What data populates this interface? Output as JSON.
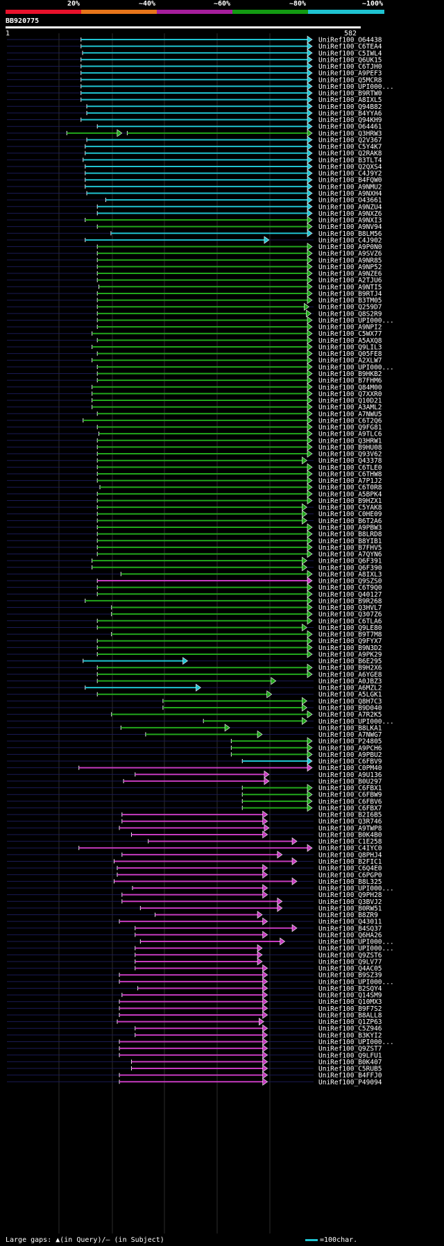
{
  "query": {
    "name": "BB920775",
    "start": "1",
    "end": "582"
  },
  "legend": {
    "labels": [
      "20%",
      "~40%",
      "~60%",
      "~80%",
      "~100%"
    ],
    "colors": [
      "#e8112b",
      "#e7751a",
      "#a61e9c",
      "#139a12",
      "#1fc3d1"
    ]
  },
  "footer": "Large gaps: ▲(in Query)/– (in Subject)",
  "scale_label": "=100char.",
  "colors": {
    "cyan": "#1fc3d1",
    "green": "#22a81c",
    "magenta": "#c63bc0"
  },
  "hits": [
    {
      "id": "UniRef100_O64438",
      "c": "c",
      "s": 142,
      "e": 582
    },
    {
      "id": "UniRef100_C6TEA4",
      "c": "c",
      "s": 142,
      "e": 582
    },
    {
      "id": "UniRef100_C5IWL4",
      "c": "c",
      "s": 145,
      "e": 582
    },
    {
      "id": "UniRef100_Q6UK15",
      "c": "c",
      "s": 142,
      "e": 582
    },
    {
      "id": "UniRef100_C6TJH0",
      "c": "c",
      "s": 142,
      "e": 582
    },
    {
      "id": "UniRef100_A9PEF3",
      "c": "c",
      "s": 142,
      "e": 582
    },
    {
      "id": "UniRef100_Q5MCR8",
      "c": "c",
      "s": 142,
      "e": 582
    },
    {
      "id": "UniRef100_UPI000...",
      "c": "c",
      "s": 142,
      "e": 582
    },
    {
      "id": "UniRef100_B9RTW0",
      "c": "c",
      "s": 142,
      "e": 582
    },
    {
      "id": "UniRef100_A8IXL5",
      "c": "c",
      "s": 142,
      "e": 582
    },
    {
      "id": "UniRef100_Q94B82",
      "c": "c",
      "s": 153,
      "e": 582
    },
    {
      "id": "UniRef100_B4YYA6",
      "c": "c",
      "s": 153,
      "e": 582
    },
    {
      "id": "UniRef100_Q94KH9",
      "c": "c",
      "s": 142,
      "e": 582
    },
    {
      "id": "UniRef100_O64461",
      "c": "c",
      "s": 173,
      "e": 582
    },
    {
      "id": "UniRef100_Q3HRW3",
      "c": "g",
      "s": 115,
      "e": 220,
      "s2": 230,
      "e2": 582
    },
    {
      "id": "UniRef100_Q2V367",
      "c": "c",
      "s": 153,
      "e": 582
    },
    {
      "id": "UniRef100_C5Y4K7",
      "c": "c",
      "s": 150,
      "e": 582
    },
    {
      "id": "UniRef100_Q2RAK8",
      "c": "c",
      "s": 150,
      "e": 582
    },
    {
      "id": "UniRef100_B3TLT4",
      "c": "c",
      "s": 146,
      "e": 582
    },
    {
      "id": "UniRef100_Q2QXS4",
      "c": "c",
      "s": 150,
      "e": 582
    },
    {
      "id": "UniRef100_C4J9Y2",
      "c": "c",
      "s": 150,
      "e": 582
    },
    {
      "id": "UniRef100_B4FQW0",
      "c": "c",
      "s": 150,
      "e": 582
    },
    {
      "id": "UniRef100_A9NMU2",
      "c": "c",
      "s": 150,
      "e": 582
    },
    {
      "id": "UniRef100_A9NXH4",
      "c": "c",
      "s": 153,
      "e": 582
    },
    {
      "id": "UniRef100_O43661",
      "c": "c",
      "s": 189,
      "e": 582
    },
    {
      "id": "UniRef100_A9NZU4",
      "c": "c",
      "s": 173,
      "e": 582
    },
    {
      "id": "UniRef100_A9NXZ6",
      "c": "c",
      "s": 173,
      "e": 582
    },
    {
      "id": "UniRef100_A9NXI3",
      "c": "g",
      "s": 150,
      "e": 582
    },
    {
      "id": "UniRef100_A9NV94",
      "c": "g",
      "s": 173,
      "e": 582
    },
    {
      "id": "UniRef100_B8LM56",
      "c": "c",
      "s": 199,
      "e": 582
    },
    {
      "id": "UniRef100_C4J902",
      "c": "c",
      "s": 150,
      "e": 500
    },
    {
      "id": "UniRef100_A9P0N0",
      "c": "g",
      "s": 173,
      "e": 582
    },
    {
      "id": "UniRef100_A9SVZ6",
      "c": "g",
      "s": 173,
      "e": 582
    },
    {
      "id": "UniRef100_A9NR85",
      "c": "g",
      "s": 173,
      "e": 582
    },
    {
      "id": "UniRef100_A9NP52",
      "c": "g",
      "s": 173,
      "e": 582
    },
    {
      "id": "UniRef100_A9NZE6",
      "c": "g",
      "s": 173,
      "e": 582
    },
    {
      "id": "UniRef100_A2TJU6",
      "c": "g",
      "s": 173,
      "e": 582
    },
    {
      "id": "UniRef100_A9NTI5",
      "c": "g",
      "s": 176,
      "e": 582
    },
    {
      "id": "UniRef100_B9RTJ4",
      "c": "g",
      "s": 173,
      "e": 582
    },
    {
      "id": "UniRef100_B3TM05",
      "c": "g",
      "s": 173,
      "e": 582
    },
    {
      "id": "UniRef100_Q259D7",
      "c": "g",
      "s": 173,
      "e": 576
    },
    {
      "id": "UniRef100_Q8S2R9",
      "c": "g",
      "s": 173,
      "e": 580
    },
    {
      "id": "UniRef100_UPI000...",
      "c": "g",
      "s": 173,
      "e": 582
    },
    {
      "id": "UniRef100_A9NPI2",
      "c": "g",
      "s": 173,
      "e": 582
    },
    {
      "id": "UniRef100_C5WX77",
      "c": "g",
      "s": 163,
      "e": 582
    },
    {
      "id": "UniRef100_A5AXQ8",
      "c": "g",
      "s": 173,
      "e": 582
    },
    {
      "id": "UniRef100_Q9LIL3",
      "c": "g",
      "s": 163,
      "e": 582
    },
    {
      "id": "UniRef100_Q05FE8",
      "c": "g",
      "s": 173,
      "e": 582
    },
    {
      "id": "UniRef100_A2XLW7",
      "c": "g",
      "s": 163,
      "e": 582
    },
    {
      "id": "UniRef100_UPI000...",
      "c": "g",
      "s": 173,
      "e": 582
    },
    {
      "id": "UniRef100_B9HKB2",
      "c": "g",
      "s": 173,
      "e": 582
    },
    {
      "id": "UniRef100_B7FHM6",
      "c": "g",
      "s": 173,
      "e": 582
    },
    {
      "id": "UniRef100_Q84M00",
      "c": "g",
      "s": 163,
      "e": 582
    },
    {
      "id": "UniRef100_Q7XXR0",
      "c": "g",
      "s": 163,
      "e": 582
    },
    {
      "id": "UniRef100_Q10D21",
      "c": "g",
      "s": 163,
      "e": 582
    },
    {
      "id": "UniRef100_A3AML2",
      "c": "g",
      "s": 163,
      "e": 582
    },
    {
      "id": "UniRef100_A7NWU5",
      "c": "g",
      "s": 173,
      "e": 582
    },
    {
      "id": "UniRef100_C6T2Q6",
      "c": "g",
      "s": 146,
      "e": 582
    },
    {
      "id": "UniRef100_Q9FG81",
      "c": "g",
      "s": 173,
      "e": 582
    },
    {
      "id": "UniRef100_A9TLC6",
      "c": "g",
      "s": 176,
      "e": 582
    },
    {
      "id": "UniRef100_Q3HRW1",
      "c": "g",
      "s": 173,
      "e": 582
    },
    {
      "id": "UniRef100_B9HU08",
      "c": "g",
      "s": 173,
      "e": 582
    },
    {
      "id": "UniRef100_Q93V62",
      "c": "g",
      "s": 173,
      "e": 582
    },
    {
      "id": "UniRef100_Q43378",
      "c": "g",
      "s": 173,
      "e": 572
    },
    {
      "id": "UniRef100_C6TLE0",
      "c": "g",
      "s": 173,
      "e": 582
    },
    {
      "id": "UniRef100_C6THW8",
      "c": "g",
      "s": 173,
      "e": 582
    },
    {
      "id": "UniRef100_A7P1J2",
      "c": "g",
      "s": 173,
      "e": 582
    },
    {
      "id": "UniRef100_C6T0R8",
      "c": "g",
      "s": 178,
      "e": 582
    },
    {
      "id": "UniRef100_A5BPK4",
      "c": "g",
      "s": 173,
      "e": 582
    },
    {
      "id": "UniRef100_B9HZX1",
      "c": "g",
      "s": 173,
      "e": 582
    },
    {
      "id": "UniRef100_C5YAK8",
      "c": "g",
      "s": 173,
      "e": 572
    },
    {
      "id": "UniRef100_C0HE09",
      "c": "g",
      "s": 173,
      "e": 572
    },
    {
      "id": "UniRef100_B6T2A6",
      "c": "g",
      "s": 173,
      "e": 572
    },
    {
      "id": "UniRef100_A9PBW3",
      "c": "g",
      "s": 173,
      "e": 582
    },
    {
      "id": "UniRef100_B8LRD8",
      "c": "g",
      "s": 173,
      "e": 582
    },
    {
      "id": "UniRef100_B8YIB1",
      "c": "g",
      "s": 173,
      "e": 582
    },
    {
      "id": "UniRef100_B7FHV5",
      "c": "g",
      "s": 173,
      "e": 582
    },
    {
      "id": "UniRef100_A7QYN6",
      "c": "g",
      "s": 173,
      "e": 582
    },
    {
      "id": "UniRef100_Q6F391",
      "c": "g",
      "s": 163,
      "e": 572
    },
    {
      "id": "UniRef100_Q6F390",
      "c": "g",
      "s": 163,
      "e": 572
    },
    {
      "id": "UniRef100_A8IXL3",
      "c": "g",
      "s": 218,
      "e": 582
    },
    {
      "id": "UniRef100_Q9SZS0",
      "c": "m",
      "s": 173,
      "e": 582
    },
    {
      "id": "UniRef100_C6T9Q0",
      "c": "g",
      "s": 173,
      "e": 582
    },
    {
      "id": "UniRef100_Q40127",
      "c": "g",
      "s": 173,
      "e": 582
    },
    {
      "id": "UniRef100_B9R268",
      "c": "g",
      "s": 150,
      "e": 582
    },
    {
      "id": "UniRef100_Q3HVL7",
      "c": "g",
      "s": 200,
      "e": 582
    },
    {
      "id": "UniRef100_Q307Z6",
      "c": "g",
      "s": 200,
      "e": 582
    },
    {
      "id": "UniRef100_C6TLA6",
      "c": "g",
      "s": 173,
      "e": 582
    },
    {
      "id": "UniRef100_Q9LE80",
      "c": "g",
      "s": 173,
      "e": 572
    },
    {
      "id": "UniRef100_B9T7M8",
      "c": "g",
      "s": 200,
      "e": 582
    },
    {
      "id": "UniRef100_Q9FYX7",
      "c": "g",
      "s": 173,
      "e": 582
    },
    {
      "id": "UniRef100_B9N3D2",
      "c": "g",
      "s": 173,
      "e": 582
    },
    {
      "id": "UniRef100_A9PK29",
      "c": "g",
      "s": 173,
      "e": 582
    },
    {
      "id": "UniRef100_B6E295",
      "c": "c",
      "s": 146,
      "e": 345
    },
    {
      "id": "UniRef100_B9H2X6",
      "c": "g",
      "s": 173,
      "e": 582
    },
    {
      "id": "UniRef100_A6YGE8",
      "c": "g",
      "s": 173,
      "e": 582
    },
    {
      "id": "UniRef100_A0JBZ3",
      "c": "g",
      "s": 173,
      "e": 513
    },
    {
      "id": "UniRef100_A6MZL2",
      "c": "c",
      "s": 150,
      "e": 370
    },
    {
      "id": "UniRef100_A5LGK1",
      "c": "g",
      "s": 173,
      "e": 505
    },
    {
      "id": "UniRef100_Q8H7C3",
      "c": "g",
      "s": 298,
      "e": 572
    },
    {
      "id": "UniRef100_B9D040",
      "c": "g",
      "s": 298,
      "e": 572
    },
    {
      "id": "UniRef100_A7R2K5",
      "c": "g",
      "s": 200,
      "e": 582
    },
    {
      "id": "UniRef100_UPI000...",
      "c": "g",
      "s": 375,
      "e": 572
    },
    {
      "id": "UniRef100_B8LKA1",
      "c": "g",
      "s": 218,
      "e": 425
    },
    {
      "id": "UniRef100_A7NWG7",
      "c": "g",
      "s": 265,
      "e": 487
    },
    {
      "id": "UniRef100_P24805",
      "c": "g",
      "s": 428,
      "e": 582
    },
    {
      "id": "UniRef100_A9PCH6",
      "c": "g",
      "s": 428,
      "e": 582
    },
    {
      "id": "UniRef100_A9PBU2",
      "c": "g",
      "s": 428,
      "e": 582
    },
    {
      "id": "UniRef100_C6FBV9",
      "c": "c",
      "s": 449,
      "e": 582
    },
    {
      "id": "UniRef100_C0PM40",
      "c": "m",
      "s": 138,
      "e": 582
    },
    {
      "id": "UniRef100_A9U136",
      "c": "m",
      "s": 245,
      "e": 500
    },
    {
      "id": "UniRef100_B0U297",
      "c": "m",
      "s": 223,
      "e": 500
    },
    {
      "id": "UniRef100_C6FBX1",
      "c": "g",
      "s": 449,
      "e": 582
    },
    {
      "id": "UniRef100_C6FBW9",
      "c": "g",
      "s": 449,
      "e": 582
    },
    {
      "id": "UniRef100_C6FBV6",
      "c": "g",
      "s": 449,
      "e": 582
    },
    {
      "id": "UniRef100_C6FBX7",
      "c": "g",
      "s": 449,
      "e": 582
    },
    {
      "id": "UniRef100_B2I6B5",
      "c": "m",
      "s": 220,
      "e": 497
    },
    {
      "id": "UniRef100_Q3R746",
      "c": "m",
      "s": 220,
      "e": 497
    },
    {
      "id": "UniRef100_A9TWP8",
      "c": "m",
      "s": 215,
      "e": 500
    },
    {
      "id": "UniRef100_B0K4B0",
      "c": "m",
      "s": 238,
      "e": 497
    },
    {
      "id": "UniRef100_C1E258",
      "c": "m",
      "s": 270,
      "e": 553
    },
    {
      "id": "UniRef100_C4IYC0",
      "c": "m",
      "s": 138,
      "e": 582
    },
    {
      "id": "UniRef100_Q8PHJ4",
      "c": "m",
      "s": 220,
      "e": 525
    },
    {
      "id": "UniRef100_B2FIC1",
      "c": "m",
      "s": 205,
      "e": 553
    },
    {
      "id": "UniRef100_C6Q4E0",
      "c": "m",
      "s": 211,
      "e": 497
    },
    {
      "id": "UniRef100_C6PGP0",
      "c": "m",
      "s": 211,
      "e": 497
    },
    {
      "id": "UniRef100_B8L325",
      "c": "m",
      "s": 205,
      "e": 553
    },
    {
      "id": "UniRef100_UPI000...",
      "c": "m",
      "s": 240,
      "e": 497
    },
    {
      "id": "UniRef100_Q9PH28",
      "c": "m",
      "s": 220,
      "e": 497
    },
    {
      "id": "UniRef100_Q3BVJ2",
      "c": "m",
      "s": 220,
      "e": 525
    },
    {
      "id": "UniRef100_B0RW51",
      "c": "m",
      "s": 255,
      "e": 525
    },
    {
      "id": "UniRef100_B8ZR9",
      "c": "m",
      "s": 283,
      "e": 487
    },
    {
      "id": "UniRef100_Q43011",
      "c": "m",
      "s": 215,
      "e": 497
    },
    {
      "id": "UniRef100_B4SQ37",
      "c": "m",
      "s": 245,
      "e": 553
    },
    {
      "id": "UniRef100_Q6HA26",
      "c": "m",
      "s": 245,
      "e": 497
    },
    {
      "id": "UniRef100_UPI000...",
      "c": "m",
      "s": 255,
      "e": 530
    },
    {
      "id": "UniRef100_UPI000...",
      "c": "m",
      "s": 245,
      "e": 487
    },
    {
      "id": "UniRef100_Q9ZST6",
      "c": "m",
      "s": 245,
      "e": 487
    },
    {
      "id": "UniRef100_Q9LV77",
      "c": "m",
      "s": 245,
      "e": 487
    },
    {
      "id": "UniRef100_Q4AC05",
      "c": "m",
      "s": 245,
      "e": 497
    },
    {
      "id": "UniRef100_B9SZ39",
      "c": "m",
      "s": 215,
      "e": 497
    },
    {
      "id": "UniRef100_UPI000...",
      "c": "m",
      "s": 215,
      "e": 497
    },
    {
      "id": "UniRef100_B2SQY4",
      "c": "m",
      "s": 250,
      "e": 497
    },
    {
      "id": "UniRef100_Q14SM9",
      "c": "m",
      "s": 220,
      "e": 497
    },
    {
      "id": "UniRef100_Q10MX3",
      "c": "m",
      "s": 215,
      "e": 497
    },
    {
      "id": "UniRef100_B9F7S2",
      "c": "m",
      "s": 215,
      "e": 497
    },
    {
      "id": "UniRef100_B8ALL8",
      "c": "m",
      "s": 215,
      "e": 497
    },
    {
      "id": "UniRef100_Q1ZP63",
      "c": "m",
      "s": 211,
      "e": 490
    },
    {
      "id": "UniRef100_C5Z946",
      "c": "m",
      "s": 245,
      "e": 497
    },
    {
      "id": "UniRef100_B3KYI2",
      "c": "m",
      "s": 245,
      "e": 497
    },
    {
      "id": "UniRef100_UPI000...",
      "c": "m",
      "s": 215,
      "e": 497
    },
    {
      "id": "UniRef100_Q9ZST7",
      "c": "m",
      "s": 215,
      "e": 497
    },
    {
      "id": "UniRef100_Q9LFU1",
      "c": "m",
      "s": 215,
      "e": 497
    },
    {
      "id": "UniRef100_B0K407",
      "c": "m",
      "s": 238,
      "e": 497
    },
    {
      "id": "UniRef100_C5RUB5",
      "c": "m",
      "s": 238,
      "e": 497
    },
    {
      "id": "UniRef100_B4FFJ0",
      "c": "m",
      "s": 215,
      "e": 497
    },
    {
      "id": "UniRef100_P49094",
      "c": "m",
      "s": 215,
      "e": 497
    }
  ]
}
